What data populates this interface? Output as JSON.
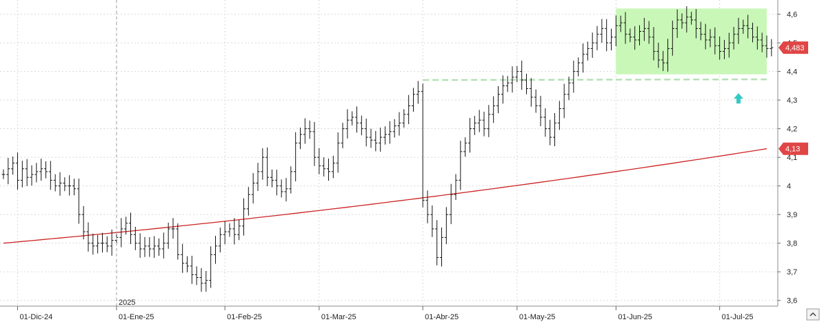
{
  "chart_data": {
    "type": "ohlc",
    "y_axis": {
      "position": "right",
      "ylim": [
        3.58,
        4.64
      ],
      "ticks": [
        "4,6",
        "4,5",
        "4,4",
        "4,3",
        "4,2",
        "4,1",
        "4",
        "3,9",
        "3,8",
        "3,7",
        "3,6"
      ],
      "tick_values": [
        4.6,
        4.5,
        4.4,
        4.3,
        4.2,
        4.1,
        4.0,
        3.9,
        3.8,
        3.7,
        3.6
      ]
    },
    "x_axis": {
      "labels": [
        {
          "text": "01-Dic-24",
          "index": 3
        },
        {
          "text": "01-Ene-25",
          "index": 24
        },
        {
          "text": "01-Feb-25",
          "index": 47
        },
        {
          "text": "01-Mar-25",
          "index": 67
        },
        {
          "text": "01-Abr-25",
          "index": 89
        },
        {
          "text": "01-May-25",
          "index": 109
        },
        {
          "text": "01-Jun-25",
          "index": 130
        },
        {
          "text": "01-Jul-25",
          "index": 152
        }
      ],
      "year_marker": {
        "text": "2025",
        "index": 24
      },
      "index_range": [
        0,
        162
      ]
    },
    "grid": true,
    "close_series": [
      4.04,
      4.06,
      4.08,
      4.02,
      4.06,
      4.03,
      4.04,
      4.05,
      4.06,
      4.05,
      4.02,
      4.0,
      4.01,
      4.0,
      4.0,
      3.99,
      3.9,
      3.84,
      3.8,
      3.79,
      3.8,
      3.8,
      3.79,
      3.81,
      3.82,
      3.85,
      3.87,
      3.83,
      3.8,
      3.78,
      3.79,
      3.78,
      3.79,
      3.78,
      3.8,
      3.85,
      3.85,
      3.76,
      3.73,
      3.72,
      3.69,
      3.68,
      3.66,
      3.67,
      3.76,
      3.79,
      3.83,
      3.84,
      3.85,
      3.83,
      3.86,
      3.92,
      3.97,
      4.01,
      4.05,
      4.1,
      4.03,
      4.02,
      4.0,
      3.98,
      3.99,
      4.05,
      4.15,
      4.18,
      4.2,
      4.19,
      4.1,
      4.07,
      4.06,
      4.05,
      4.08,
      4.15,
      4.2,
      4.23,
      4.24,
      4.22,
      4.2,
      4.17,
      4.16,
      4.15,
      4.17,
      4.18,
      4.19,
      4.21,
      4.22,
      4.25,
      4.28,
      4.32,
      4.33,
      3.95,
      3.9,
      3.85,
      3.75,
      3.82,
      3.9,
      3.97,
      4.02,
      4.12,
      4.15,
      4.2,
      4.22,
      4.23,
      4.2,
      4.25,
      4.28,
      4.32,
      4.35,
      4.36,
      4.38,
      4.4,
      4.37,
      4.34,
      4.31,
      4.28,
      4.24,
      4.2,
      4.17,
      4.22,
      4.27,
      4.32,
      4.36,
      4.4,
      4.43,
      4.46,
      4.48,
      4.5,
      4.53,
      4.55,
      4.5,
      4.52,
      4.56,
      4.57,
      4.53,
      4.52,
      4.51,
      4.54,
      4.55,
      4.52,
      4.47,
      4.44,
      4.43,
      4.48,
      4.55,
      4.58,
      4.57,
      4.59,
      4.58,
      4.55,
      4.53,
      4.51,
      4.52,
      4.49,
      4.47,
      4.48,
      4.5,
      4.53,
      4.55,
      4.56,
      4.55,
      4.52,
      4.51,
      4.49,
      4.48,
      4.483
    ],
    "moving_average": {
      "start": 3.8,
      "end": 4.13,
      "color": "#cc2222"
    },
    "resistance_line": {
      "value": 4.37,
      "index_start": 89,
      "index_end": 162,
      "color": "#b5e0b5"
    },
    "range_box": {
      "index_start": 130,
      "index_end": 162,
      "y_low": 4.39,
      "y_high": 4.62,
      "fill": "#c9f7b8"
    },
    "arrow": {
      "index": 156,
      "value": 4.3,
      "color": "#35c9c5",
      "direction": "up"
    },
    "price_badges": [
      {
        "label": "4,483",
        "value": 4.483,
        "color": "#e04646"
      },
      {
        "label": "4,13",
        "value": 4.13,
        "color": "#e04646"
      }
    ]
  }
}
